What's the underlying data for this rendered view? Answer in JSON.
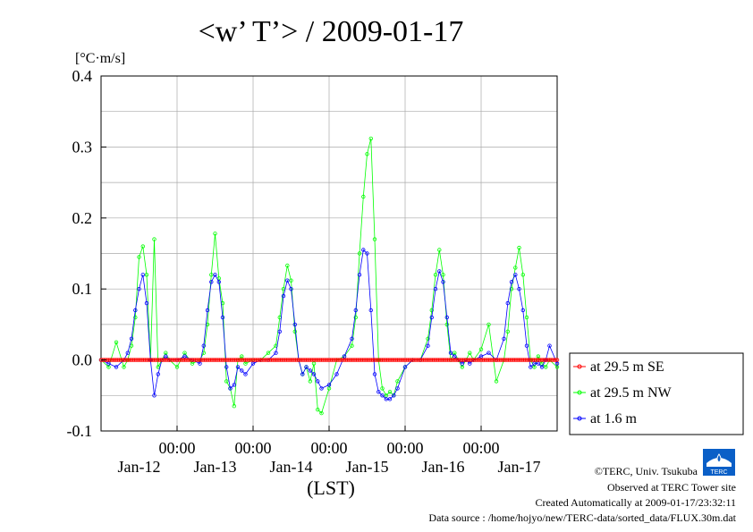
{
  "chart_data": {
    "type": "line",
    "title": "<w’ T’> / 2009-01-17",
    "ylabel": "[°C·m/s]",
    "xlabel": "(LST)",
    "ylim": [
      -0.1,
      0.4
    ],
    "xlim": [
      0,
      6
    ],
    "yticks": [
      "0.4",
      "0.3",
      "0.2",
      "0.1",
      "0.0",
      "-0.1"
    ],
    "ytick_values": [
      0.4,
      0.3,
      0.2,
      0.1,
      0.0,
      -0.1
    ],
    "time_ticks": [
      "00:00",
      "00:00",
      "00:00",
      "00:00",
      "00:00"
    ],
    "time_tick_values": [
      1,
      2,
      3,
      4,
      5
    ],
    "date_labels": [
      "Jan-12",
      "Jan-13",
      "Jan-14",
      "Jan-15",
      "Jan-16",
      "Jan-17"
    ],
    "date_label_values": [
      0.5,
      1.5,
      2.5,
      3.5,
      4.5,
      5.5
    ],
    "grid": true,
    "legend_position": "right",
    "x_units": "days since Jan-11 00:00 LST",
    "series": [
      {
        "name": "at 29.5 m SE",
        "color": "#ff0000",
        "x": [
          0.0,
          0.5,
          1.0,
          1.5,
          2.0,
          2.5,
          3.0,
          3.5,
          4.0,
          4.5,
          5.0,
          5.5,
          6.0
        ],
        "values": [
          0,
          0,
          0,
          0,
          0,
          0,
          0,
          0,
          0,
          0,
          0,
          0,
          0
        ]
      },
      {
        "name": "at 29.5 m NW",
        "color": "#00ff00",
        "x": [
          0.0,
          0.1,
          0.2,
          0.3,
          0.35,
          0.4,
          0.45,
          0.5,
          0.55,
          0.6,
          0.65,
          0.7,
          0.75,
          0.8,
          0.85,
          0.9,
          1.0,
          1.1,
          1.2,
          1.3,
          1.35,
          1.4,
          1.45,
          1.5,
          1.55,
          1.6,
          1.65,
          1.7,
          1.75,
          1.8,
          1.85,
          1.9,
          2.0,
          2.1,
          2.2,
          2.3,
          2.35,
          2.4,
          2.45,
          2.5,
          2.55,
          2.6,
          2.65,
          2.7,
          2.75,
          2.8,
          2.85,
          2.9,
          3.0,
          3.1,
          3.2,
          3.3,
          3.35,
          3.4,
          3.45,
          3.5,
          3.55,
          3.6,
          3.65,
          3.7,
          3.75,
          3.8,
          3.85,
          3.9,
          4.0,
          4.1,
          4.2,
          4.3,
          4.35,
          4.4,
          4.45,
          4.5,
          4.55,
          4.6,
          4.65,
          4.7,
          4.75,
          4.8,
          4.85,
          4.9,
          5.0,
          5.1,
          5.2,
          5.3,
          5.35,
          5.4,
          5.45,
          5.5,
          5.55,
          5.6,
          5.65,
          5.7,
          5.75,
          5.8,
          5.85,
          5.9,
          6.0
        ],
        "values": [
          0.0,
          -0.01,
          0.025,
          -0.01,
          0.0,
          0.02,
          0.06,
          0.145,
          0.16,
          0.12,
          0.0,
          0.17,
          -0.01,
          0.0,
          0.01,
          0.0,
          -0.01,
          0.01,
          -0.005,
          0.0,
          0.01,
          0.05,
          0.12,
          0.178,
          0.115,
          0.08,
          -0.03,
          -0.04,
          -0.065,
          0.0,
          0.005,
          -0.005,
          0.0,
          0.0,
          0.01,
          0.02,
          0.06,
          0.1,
          0.133,
          0.112,
          0.04,
          0.0,
          -0.02,
          -0.01,
          -0.03,
          -0.005,
          -0.07,
          -0.075,
          -0.04,
          0.0,
          0.005,
          0.02,
          0.06,
          0.15,
          0.23,
          0.29,
          0.312,
          0.17,
          0.0,
          -0.04,
          -0.05,
          -0.045,
          -0.05,
          -0.03,
          -0.01,
          0.0,
          0.0,
          0.03,
          0.07,
          0.12,
          0.155,
          0.12,
          0.05,
          0.0,
          0.01,
          0.0,
          -0.01,
          0.0,
          0.01,
          0.0,
          0.015,
          0.05,
          -0.03,
          0.0,
          0.04,
          0.1,
          0.13,
          0.158,
          0.12,
          0.06,
          0.0,
          -0.01,
          0.005,
          -0.005,
          -0.01,
          0.0,
          -0.01
        ]
      },
      {
        "name": "at 1.6 m",
        "color": "#0000ff",
        "x": [
          0.0,
          0.1,
          0.2,
          0.3,
          0.35,
          0.4,
          0.45,
          0.5,
          0.55,
          0.6,
          0.65,
          0.7,
          0.75,
          0.8,
          0.85,
          0.9,
          1.0,
          1.1,
          1.2,
          1.3,
          1.35,
          1.4,
          1.45,
          1.5,
          1.55,
          1.6,
          1.65,
          1.7,
          1.75,
          1.8,
          1.85,
          1.9,
          2.0,
          2.1,
          2.2,
          2.3,
          2.35,
          2.4,
          2.45,
          2.5,
          2.55,
          2.6,
          2.65,
          2.7,
          2.75,
          2.8,
          2.85,
          2.9,
          3.0,
          3.1,
          3.2,
          3.3,
          3.35,
          3.4,
          3.45,
          3.5,
          3.55,
          3.6,
          3.65,
          3.7,
          3.75,
          3.8,
          3.85,
          3.9,
          4.0,
          4.1,
          4.2,
          4.3,
          4.35,
          4.4,
          4.45,
          4.5,
          4.55,
          4.6,
          4.65,
          4.7,
          4.75,
          4.8,
          4.85,
          4.9,
          5.0,
          5.1,
          5.2,
          5.3,
          5.35,
          5.4,
          5.45,
          5.5,
          5.55,
          5.6,
          5.65,
          5.7,
          5.75,
          5.8,
          5.85,
          5.9,
          6.0
        ],
        "values": [
          0.0,
          -0.005,
          -0.01,
          0.0,
          0.01,
          0.03,
          0.07,
          0.1,
          0.12,
          0.08,
          0.0,
          -0.05,
          -0.02,
          0.0,
          0.005,
          0.0,
          0.0,
          0.005,
          0.0,
          -0.005,
          0.02,
          0.07,
          0.11,
          0.12,
          0.11,
          0.06,
          -0.01,
          -0.04,
          -0.035,
          -0.01,
          -0.015,
          -0.02,
          -0.005,
          0.0,
          0.0,
          0.01,
          0.04,
          0.09,
          0.112,
          0.1,
          0.05,
          0.0,
          -0.02,
          -0.01,
          -0.015,
          -0.02,
          -0.03,
          -0.04,
          -0.035,
          -0.02,
          0.005,
          0.03,
          0.07,
          0.12,
          0.155,
          0.15,
          0.07,
          -0.02,
          -0.045,
          -0.05,
          -0.055,
          -0.055,
          -0.05,
          -0.04,
          -0.01,
          0.0,
          0.0,
          0.02,
          0.06,
          0.1,
          0.125,
          0.11,
          0.06,
          0.01,
          0.005,
          0.0,
          -0.005,
          0.0,
          -0.005,
          0.0,
          0.005,
          0.01,
          0.0,
          0.03,
          0.08,
          0.11,
          0.12,
          0.1,
          0.07,
          0.02,
          -0.01,
          -0.005,
          -0.005,
          -0.01,
          0.0,
          0.02,
          -0.005
        ]
      }
    ]
  },
  "credits": {
    "copyright": "©TERC, Univ. Tsukuba",
    "observed": "Observed at TERC Tower site",
    "created": "Created Automatically at 2009-01-17/23:32:11",
    "source": "Data source : /home/hojyo/new/TERC-data/sorted_data/FLUX.30m.dat",
    "logo_text": "TERC"
  }
}
